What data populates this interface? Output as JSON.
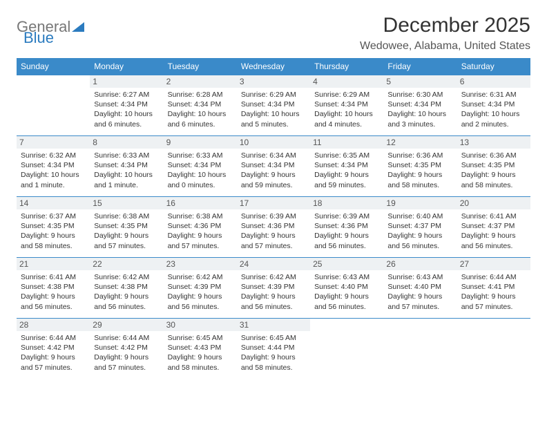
{
  "brand": {
    "part1": "General",
    "part2": "Blue"
  },
  "title": "December 2025",
  "location": "Wedowee, Alabama, United States",
  "colors": {
    "header_bg": "#3a8ac9",
    "header_text": "#ffffff",
    "border": "#3a8ac9",
    "daynum_bg": "#eef1f3",
    "body_text": "#333333",
    "brand_blue": "#2b7bbf",
    "brand_gray": "#777777"
  },
  "weekdays": [
    "Sunday",
    "Monday",
    "Tuesday",
    "Wednesday",
    "Thursday",
    "Friday",
    "Saturday"
  ],
  "weeks": [
    [
      null,
      {
        "day": "1",
        "sunrise": "Sunrise: 6:27 AM",
        "sunset": "Sunset: 4:34 PM",
        "daylight": "Daylight: 10 hours and 6 minutes."
      },
      {
        "day": "2",
        "sunrise": "Sunrise: 6:28 AM",
        "sunset": "Sunset: 4:34 PM",
        "daylight": "Daylight: 10 hours and 6 minutes."
      },
      {
        "day": "3",
        "sunrise": "Sunrise: 6:29 AM",
        "sunset": "Sunset: 4:34 PM",
        "daylight": "Daylight: 10 hours and 5 minutes."
      },
      {
        "day": "4",
        "sunrise": "Sunrise: 6:29 AM",
        "sunset": "Sunset: 4:34 PM",
        "daylight": "Daylight: 10 hours and 4 minutes."
      },
      {
        "day": "5",
        "sunrise": "Sunrise: 6:30 AM",
        "sunset": "Sunset: 4:34 PM",
        "daylight": "Daylight: 10 hours and 3 minutes."
      },
      {
        "day": "6",
        "sunrise": "Sunrise: 6:31 AM",
        "sunset": "Sunset: 4:34 PM",
        "daylight": "Daylight: 10 hours and 2 minutes."
      }
    ],
    [
      {
        "day": "7",
        "sunrise": "Sunrise: 6:32 AM",
        "sunset": "Sunset: 4:34 PM",
        "daylight": "Daylight: 10 hours and 1 minute."
      },
      {
        "day": "8",
        "sunrise": "Sunrise: 6:33 AM",
        "sunset": "Sunset: 4:34 PM",
        "daylight": "Daylight: 10 hours and 1 minute."
      },
      {
        "day": "9",
        "sunrise": "Sunrise: 6:33 AM",
        "sunset": "Sunset: 4:34 PM",
        "daylight": "Daylight: 10 hours and 0 minutes."
      },
      {
        "day": "10",
        "sunrise": "Sunrise: 6:34 AM",
        "sunset": "Sunset: 4:34 PM",
        "daylight": "Daylight: 9 hours and 59 minutes."
      },
      {
        "day": "11",
        "sunrise": "Sunrise: 6:35 AM",
        "sunset": "Sunset: 4:34 PM",
        "daylight": "Daylight: 9 hours and 59 minutes."
      },
      {
        "day": "12",
        "sunrise": "Sunrise: 6:36 AM",
        "sunset": "Sunset: 4:35 PM",
        "daylight": "Daylight: 9 hours and 58 minutes."
      },
      {
        "day": "13",
        "sunrise": "Sunrise: 6:36 AM",
        "sunset": "Sunset: 4:35 PM",
        "daylight": "Daylight: 9 hours and 58 minutes."
      }
    ],
    [
      {
        "day": "14",
        "sunrise": "Sunrise: 6:37 AM",
        "sunset": "Sunset: 4:35 PM",
        "daylight": "Daylight: 9 hours and 58 minutes."
      },
      {
        "day": "15",
        "sunrise": "Sunrise: 6:38 AM",
        "sunset": "Sunset: 4:35 PM",
        "daylight": "Daylight: 9 hours and 57 minutes."
      },
      {
        "day": "16",
        "sunrise": "Sunrise: 6:38 AM",
        "sunset": "Sunset: 4:36 PM",
        "daylight": "Daylight: 9 hours and 57 minutes."
      },
      {
        "day": "17",
        "sunrise": "Sunrise: 6:39 AM",
        "sunset": "Sunset: 4:36 PM",
        "daylight": "Daylight: 9 hours and 57 minutes."
      },
      {
        "day": "18",
        "sunrise": "Sunrise: 6:39 AM",
        "sunset": "Sunset: 4:36 PM",
        "daylight": "Daylight: 9 hours and 56 minutes."
      },
      {
        "day": "19",
        "sunrise": "Sunrise: 6:40 AM",
        "sunset": "Sunset: 4:37 PM",
        "daylight": "Daylight: 9 hours and 56 minutes."
      },
      {
        "day": "20",
        "sunrise": "Sunrise: 6:41 AM",
        "sunset": "Sunset: 4:37 PM",
        "daylight": "Daylight: 9 hours and 56 minutes."
      }
    ],
    [
      {
        "day": "21",
        "sunrise": "Sunrise: 6:41 AM",
        "sunset": "Sunset: 4:38 PM",
        "daylight": "Daylight: 9 hours and 56 minutes."
      },
      {
        "day": "22",
        "sunrise": "Sunrise: 6:42 AM",
        "sunset": "Sunset: 4:38 PM",
        "daylight": "Daylight: 9 hours and 56 minutes."
      },
      {
        "day": "23",
        "sunrise": "Sunrise: 6:42 AM",
        "sunset": "Sunset: 4:39 PM",
        "daylight": "Daylight: 9 hours and 56 minutes."
      },
      {
        "day": "24",
        "sunrise": "Sunrise: 6:42 AM",
        "sunset": "Sunset: 4:39 PM",
        "daylight": "Daylight: 9 hours and 56 minutes."
      },
      {
        "day": "25",
        "sunrise": "Sunrise: 6:43 AM",
        "sunset": "Sunset: 4:40 PM",
        "daylight": "Daylight: 9 hours and 56 minutes."
      },
      {
        "day": "26",
        "sunrise": "Sunrise: 6:43 AM",
        "sunset": "Sunset: 4:40 PM",
        "daylight": "Daylight: 9 hours and 57 minutes."
      },
      {
        "day": "27",
        "sunrise": "Sunrise: 6:44 AM",
        "sunset": "Sunset: 4:41 PM",
        "daylight": "Daylight: 9 hours and 57 minutes."
      }
    ],
    [
      {
        "day": "28",
        "sunrise": "Sunrise: 6:44 AM",
        "sunset": "Sunset: 4:42 PM",
        "daylight": "Daylight: 9 hours and 57 minutes."
      },
      {
        "day": "29",
        "sunrise": "Sunrise: 6:44 AM",
        "sunset": "Sunset: 4:42 PM",
        "daylight": "Daylight: 9 hours and 57 minutes."
      },
      {
        "day": "30",
        "sunrise": "Sunrise: 6:45 AM",
        "sunset": "Sunset: 4:43 PM",
        "daylight": "Daylight: 9 hours and 58 minutes."
      },
      {
        "day": "31",
        "sunrise": "Sunrise: 6:45 AM",
        "sunset": "Sunset: 4:44 PM",
        "daylight": "Daylight: 9 hours and 58 minutes."
      },
      null,
      null,
      null
    ]
  ]
}
